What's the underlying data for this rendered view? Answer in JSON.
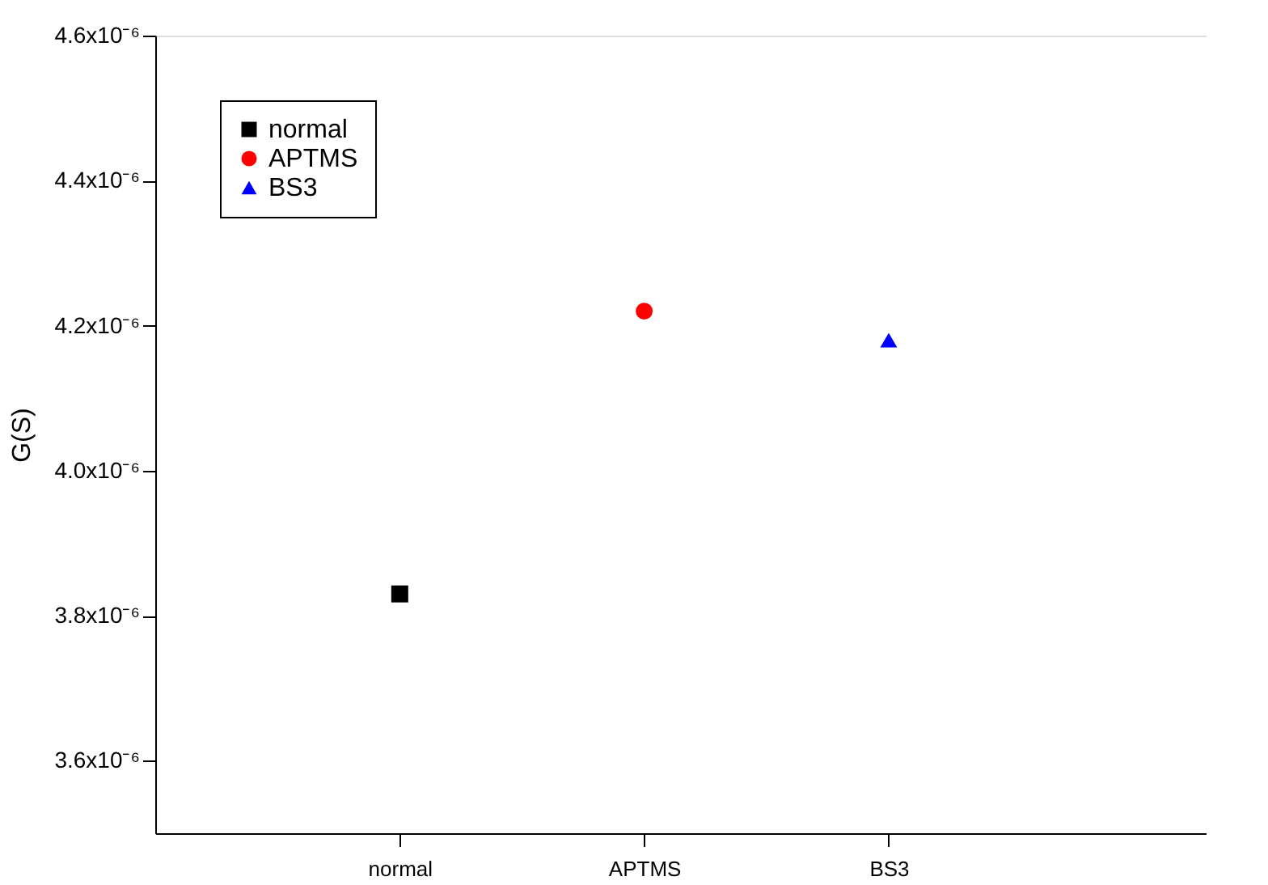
{
  "chart_data": {
    "type": "scatter",
    "ylabel": "G(S)",
    "categories": [
      "normal",
      "APTMS",
      "BS3"
    ],
    "series": [
      {
        "name": "normal",
        "color": "#000000",
        "marker": "square",
        "values": [
          3.83e-06,
          null,
          null
        ]
      },
      {
        "name": "APTMS",
        "color": "#ff0000",
        "marker": "circle",
        "values": [
          null,
          4.22e-06,
          null
        ]
      },
      {
        "name": "BS3",
        "color": "#0000ff",
        "marker": "triangle",
        "values": [
          null,
          null,
          4.18e-06
        ]
      }
    ],
    "ylim": [
      3.5e-06,
      4.6e-06
    ],
    "yticks": [
      {
        "value": 3.6e-06,
        "label": "3.6x10⁻⁶"
      },
      {
        "value": 3.8e-06,
        "label": "3.8x10⁻⁶"
      },
      {
        "value": 4e-06,
        "label": "4.0x10⁻⁶"
      },
      {
        "value": 4.2e-06,
        "label": "4.2x10⁻⁶"
      },
      {
        "value": 4.4e-06,
        "label": "4.4x10⁻⁶"
      },
      {
        "value": 4.6e-06,
        "label": "4.6x10⁻⁶"
      }
    ],
    "legend": "top left",
    "grid": false
  }
}
